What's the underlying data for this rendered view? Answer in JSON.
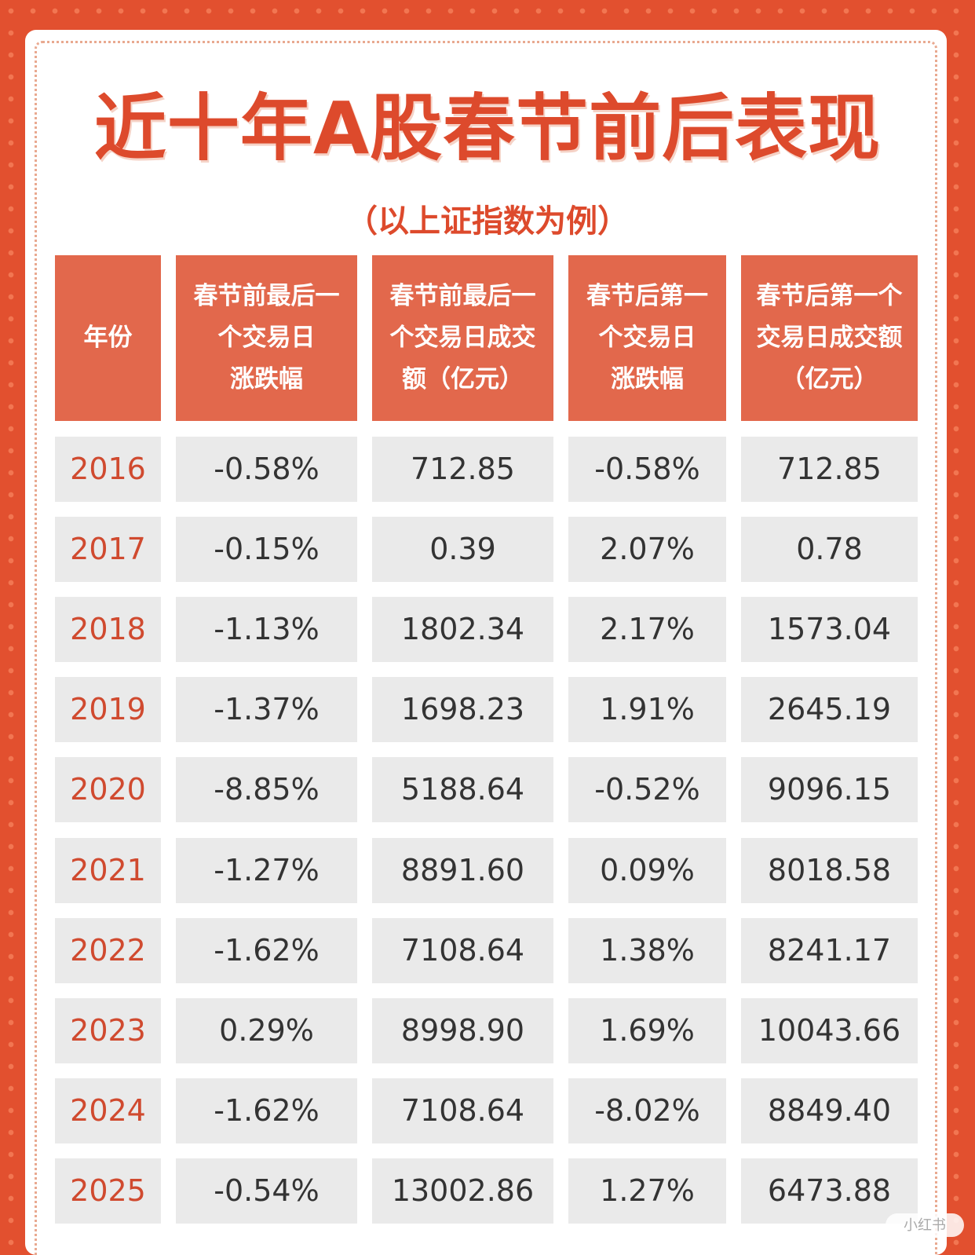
{
  "title": "近十年A股春节前后表现",
  "subtitle": "（以上证指数为例）",
  "table": {
    "headers": [
      "年份",
      "春节前最后一\n个交易日\n涨跌幅",
      "春节前最后一\n个交易日成交\n额（亿元）",
      "春节后第一\n个交易日\n涨跌幅",
      "春节后第一个\n交易日成交额\n（亿元）"
    ],
    "rows": [
      [
        "2016",
        "-0.58%",
        "712.85",
        "-0.58%",
        "712.85"
      ],
      [
        "2017",
        "-0.15%",
        "0.39",
        "2.07%",
        "0.78"
      ],
      [
        "2018",
        "-1.13%",
        "1802.34",
        "2.17%",
        "1573.04"
      ],
      [
        "2019",
        "-1.37%",
        "1698.23",
        "1.91%",
        "2645.19"
      ],
      [
        "2020",
        "-8.85%",
        "5188.64",
        "-0.52%",
        "9096.15"
      ],
      [
        "2021",
        "-1.27%",
        "8891.60",
        "0.09%",
        "8018.58"
      ],
      [
        "2022",
        "-1.62%",
        "7108.64",
        "1.38%",
        "8241.17"
      ],
      [
        "2023",
        "0.29%",
        "8998.90",
        "1.69%",
        "10043.66"
      ],
      [
        "2024",
        "-1.62%",
        "7108.64",
        "-8.02%",
        "8849.40"
      ],
      [
        "2025",
        "-0.54%",
        "13002.86",
        "1.27%",
        "6473.88"
      ]
    ]
  },
  "colors": {
    "background": "#e2502f",
    "header_fill": "#e2684c",
    "title": "#dd4a2c",
    "cell_fill": "#eaeaea",
    "year_text": "#d04a2f"
  }
}
